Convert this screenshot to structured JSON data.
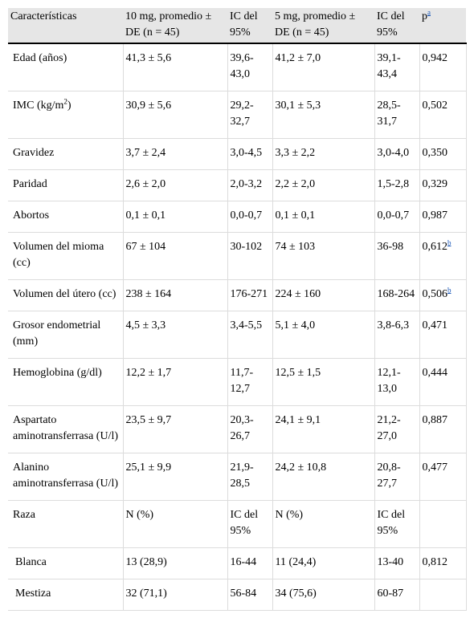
{
  "header": {
    "characteristics": "Características",
    "dose10": "10 mg, promedio ± DE (n = 45)",
    "ci1": "IC del 95%",
    "dose5": "5 mg, promedio ± DE (n = 45)",
    "ci2": "IC del 95%",
    "p": "p",
    "p_ref": "a"
  },
  "rows": [
    {
      "label": "Edad (años)",
      "v10": "41,3 ± 5,6",
      "ci10": "39,6-43,0",
      "v5": "41,2 ± 7,0",
      "ci5": "39,1-43,4",
      "p": "0,942",
      "p_ref": ""
    },
    {
      "label": "IMC (kg/m",
      "label_sup": "2",
      "label_tail": ")",
      "v10": "30,9 ± 5,6",
      "ci10": "29,2-32,7",
      "v5": "30,1 ± 5,3",
      "ci5": "28,5-31,7",
      "p": "0,502",
      "p_ref": ""
    },
    {
      "label": "Gravidez",
      "v10": "3,7 ± 2,4",
      "ci10": "3,0-4,5",
      "v5": "3,3 ± 2,2",
      "ci5": "3,0-4,0",
      "p": "0,350",
      "p_ref": ""
    },
    {
      "label": "Paridad",
      "v10": "2,6 ± 2,0",
      "ci10": "2,0-3,2",
      "v5": "2,2 ± 2,0",
      "ci5": "1,5-2,8",
      "p": "0,329",
      "p_ref": ""
    },
    {
      "label": "Abortos",
      "v10": "0,1 ± 0,1",
      "ci10": "0,0-0,7",
      "v5": "0,1 ± 0,1",
      "ci5": "0,0-0,7",
      "p": "0,987",
      "p_ref": ""
    },
    {
      "label": "Volumen del mioma (cc)",
      "v10": "67 ± 104",
      "ci10": "30-102",
      "v5": "74 ± 103",
      "ci5": "36-98",
      "p": "0,612",
      "p_ref": "b"
    },
    {
      "label": "Volumen del útero (cc)",
      "v10": "238 ± 164",
      "ci10": "176-271",
      "v5": "224 ± 160",
      "ci5": "168-264",
      "p": "0,506",
      "p_ref": "b"
    },
    {
      "label": "Grosor endometrial (mm)",
      "v10": "4,5 ± 3,3",
      "ci10": "3,4-5,5",
      "v5": "5,1 ± 4,0",
      "ci5": "3,8-6,3",
      "p": "0,471",
      "p_ref": ""
    },
    {
      "label": "Hemoglobina (g/dl)",
      "v10": "12,2 ± 1,7",
      "ci10": "11,7-12,7",
      "v5": "12,5 ± 1,5",
      "ci5": "12,1-13,0",
      "p": "0,444",
      "p_ref": ""
    },
    {
      "label": "Aspartato aminotransferrasa (U/l)",
      "v10": "23,5 ± 9,7",
      "ci10": "20,3-26,7",
      "v5": "24,1 ± 9,1",
      "ci5": "21,2-27,0",
      "p": "0,887",
      "p_ref": ""
    },
    {
      "label": "Alanino aminotransferrasa (U/l)",
      "v10": "25,1 ± 9,9",
      "ci10": "21,9-28,5",
      "v5": "24,2 ± 10,8",
      "ci5": "20,8-27,7",
      "p": "0,477",
      "p_ref": ""
    },
    {
      "label": "Raza",
      "v10": "N (%)",
      "ci10": "IC del 95%",
      "v5": "N (%)",
      "ci5": "IC del 95%",
      "p": "",
      "p_ref": ""
    },
    {
      "label": "Blanca",
      "v10": "13 (28,9)",
      "ci10": "16-44",
      "v5": "11 (24,4)",
      "ci5": "13-40",
      "p": "0,812",
      "p_ref": "",
      "sub": true
    },
    {
      "label": "Mestiza",
      "v10": "32 (71,1)",
      "ci10": "56-84",
      "v5": "34 (75,6)",
      "ci5": "60-87",
      "p": "",
      "p_ref": "",
      "sub": true
    }
  ]
}
